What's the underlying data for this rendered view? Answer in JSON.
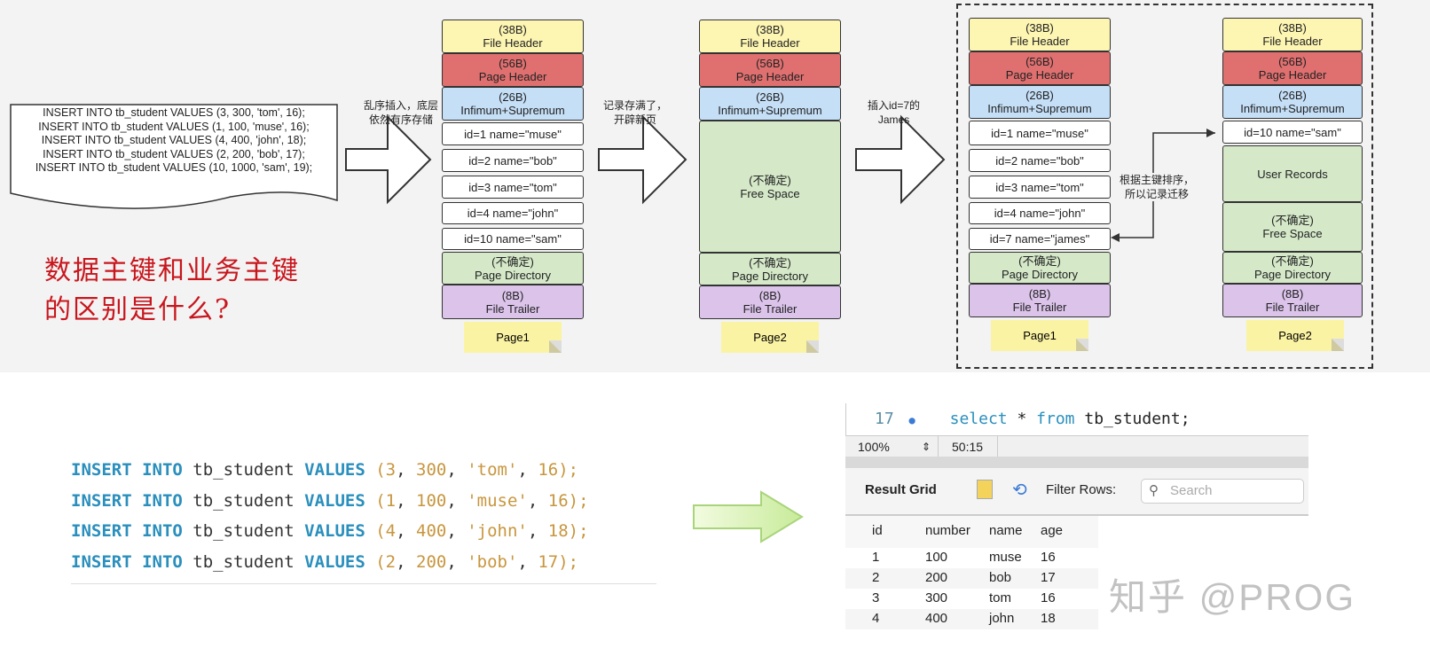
{
  "top_diagram": {
    "sql_lines": [
      "INSERT INTO tb_student VALUES (3, 300, 'tom', 16);",
      "INSERT INTO tb_student VALUES (1, 100, 'muse', 16);",
      "INSERT INTO tb_student VALUES (4, 400, 'john', 18);",
      "INSERT INTO tb_student VALUES (2, 200, 'bob', 17);",
      "INSERT INTO tb_student VALUES (10, 1000, 'sam', 19);"
    ],
    "question_line1": "数据主键和业务主键",
    "question_line2": "的区别是什么?",
    "arrow1_label": "乱序插入，底层\n依然有序存储",
    "arrow2_label": "记录存满了，\n开辟新页",
    "arrow3_label": "插入id=7的\nJames",
    "migrate_label": "根据主键排序，\n所以记录迁移",
    "colors": {
      "file_header": "#fdf5b2",
      "page_header": "#e07070",
      "infimum": "#c5dff7",
      "free": "#d5e9c9",
      "trailer": "#dbc3ea",
      "record": "#ffffff",
      "note": "#fbf3a4"
    },
    "pages": [
      {
        "note": "Page1",
        "blocks": [
          {
            "type": "file_header",
            "text": "(38B)\nFile Header"
          },
          {
            "type": "page_header",
            "text": "(56B)\nPage Header"
          },
          {
            "type": "infimum",
            "text": "(26B)\nInfimum+Supremum"
          },
          {
            "type": "record",
            "text": "id=1 name=\"muse\""
          },
          {
            "type": "record",
            "text": "id=2 name=\"bob\""
          },
          {
            "type": "record",
            "text": "id=3 name=\"tom\""
          },
          {
            "type": "record",
            "text": "id=4 name=\"john\""
          },
          {
            "type": "record",
            "text": "id=10 name=\"sam\""
          },
          {
            "type": "free",
            "text": "(不确定)\nPage Directory"
          },
          {
            "type": "trailer",
            "text": "(8B)\nFile Trailer"
          }
        ]
      },
      {
        "note": "Page2",
        "blocks": [
          {
            "type": "file_header",
            "text": "(38B)\nFile Header"
          },
          {
            "type": "page_header",
            "text": "(56B)\nPage Header"
          },
          {
            "type": "infimum",
            "text": "(26B)\nInfimum+Supremum"
          },
          {
            "type": "free",
            "text": "(不确定)\nFree Space"
          },
          {
            "type": "free",
            "text": "(不确定)\nPage Directory"
          },
          {
            "type": "trailer",
            "text": "(8B)\nFile Trailer"
          }
        ]
      },
      {
        "note": "Page1",
        "blocks": [
          {
            "type": "file_header",
            "text": "(38B)\nFile Header"
          },
          {
            "type": "page_header",
            "text": "(56B)\nPage Header"
          },
          {
            "type": "infimum",
            "text": "(26B)\nInfimum+Supremum"
          },
          {
            "type": "record",
            "text": "id=1 name=\"muse\""
          },
          {
            "type": "record",
            "text": "id=2 name=\"bob\""
          },
          {
            "type": "record",
            "text": "id=3 name=\"tom\""
          },
          {
            "type": "record",
            "text": "id=4 name=\"john\""
          },
          {
            "type": "record",
            "text": "id=7 name=\"james\""
          },
          {
            "type": "free",
            "text": "(不确定)\nPage Directory"
          },
          {
            "type": "trailer",
            "text": "(8B)\nFile Trailer"
          }
        ]
      },
      {
        "note": "Page2",
        "blocks": [
          {
            "type": "file_header",
            "text": "(38B)\nFile Header"
          },
          {
            "type": "page_header",
            "text": "(56B)\nPage Header"
          },
          {
            "type": "infimum",
            "text": "(26B)\nInfimum+Supremum"
          },
          {
            "type": "record",
            "text": "id=10 name=\"sam\""
          },
          {
            "type": "free",
            "text": "User Records"
          },
          {
            "type": "free",
            "text": "(不确定)\nFree Space"
          },
          {
            "type": "free",
            "text": "(不确定)\nPage Directory"
          },
          {
            "type": "trailer",
            "text": "(8B)\nFile Trailer"
          }
        ]
      }
    ]
  },
  "code_block": {
    "lines": [
      [
        "INSERT INTO",
        "tb_student",
        "VALUES",
        "(",
        "3",
        ", ",
        "300",
        ", ",
        "'tom'",
        ", ",
        "16",
        ");"
      ],
      [
        "INSERT INTO",
        "tb_student",
        "VALUES",
        "(",
        "1",
        ", ",
        "100",
        ", ",
        "'muse'",
        ", ",
        "16",
        ");"
      ],
      [
        "INSERT INTO",
        "tb_student",
        "VALUES",
        "(",
        "4",
        ", ",
        "400",
        ", ",
        "'john'",
        ", ",
        "18",
        ");"
      ],
      [
        "INSERT INTO",
        "tb_student",
        "VALUES",
        "(",
        "2",
        ", ",
        "200",
        ", ",
        "'bob'",
        ", ",
        "17",
        ");"
      ]
    ]
  },
  "workbench": {
    "line_number": "17",
    "query_kw1": "select",
    "query_mid": " * ",
    "query_kw2": "from",
    "query_rest": " tb_student;",
    "zoom": "100%",
    "cursor_pos": "50:15",
    "result_grid_label": "Result Grid",
    "filter_rows_label": "Filter Rows:",
    "search_placeholder": "Search",
    "columns": [
      "id",
      "number",
      "name",
      "age"
    ],
    "rows": [
      [
        "1",
        "100",
        "muse",
        "16"
      ],
      [
        "2",
        "200",
        "bob",
        "17"
      ],
      [
        "3",
        "300",
        "tom",
        "16"
      ],
      [
        "4",
        "400",
        "john",
        "18"
      ]
    ]
  },
  "watermark": "知乎 @PROG"
}
